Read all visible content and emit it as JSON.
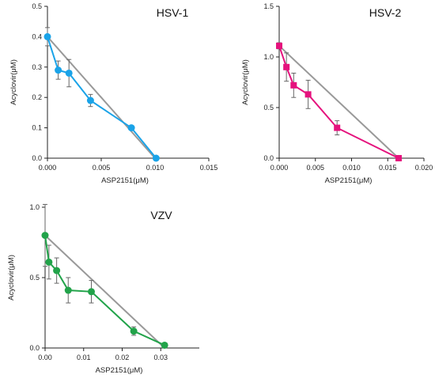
{
  "chart_data": [
    {
      "type": "line",
      "title": "HSV-1",
      "xlabel": "ASP2151(μM)",
      "ylabel": "Acyclovir(μM)",
      "xlim": [
        0,
        0.015
      ],
      "ylim": [
        0,
        0.5
      ],
      "xticks": [
        "0.000",
        "0.005",
        "0.010",
        "0.015"
      ],
      "yticks": [
        "0.0",
        "0.1",
        "0.2",
        "0.3",
        "0.4",
        "0.5"
      ],
      "marker": "circle",
      "color": "#1aa3e8",
      "additivity_line_color": "#999999",
      "additivity_line": {
        "x": [
          0,
          0.01
        ],
        "y": [
          0.4,
          0
        ]
      },
      "series": [
        {
          "x": [
            0,
            0.001,
            0.002,
            0.004,
            0.0078,
            0.0101
          ],
          "y": [
            0.4,
            0.29,
            0.28,
            0.19,
            0.1,
            0.0
          ],
          "error": [
            0.03,
            0.03,
            0.045,
            0.02,
            0.005,
            0.003
          ]
        }
      ]
    },
    {
      "type": "line",
      "title": "HSV-2",
      "xlabel": "ASP2151(μM)",
      "ylabel": "Acyclovir(μM)",
      "xlim": [
        0,
        0.02
      ],
      "ylim": [
        0,
        1.5
      ],
      "xticks": [
        "0.000",
        "0.005",
        "0.010",
        "0.015",
        "0.020"
      ],
      "yticks": [
        "0.0",
        "0.5",
        "1.0",
        "1.5"
      ],
      "marker": "square",
      "color": "#e5127d",
      "additivity_line_color": "#999999",
      "additivity_line": {
        "x": [
          0,
          0.0165
        ],
        "y": [
          1.11,
          0
        ]
      },
      "series": [
        {
          "x": [
            0,
            0.001,
            0.002,
            0.004,
            0.008,
            0.0165
          ],
          "y": [
            1.11,
            0.9,
            0.72,
            0.63,
            0.3,
            0.0
          ],
          "error": [
            0.03,
            0.14,
            0.12,
            0.14,
            0.07,
            0.01
          ]
        }
      ]
    },
    {
      "type": "line",
      "title": "VZV",
      "xlabel": "ASP2151(μM)",
      "ylabel": "Acyclovir(μM)",
      "xlim": [
        0,
        0.04
      ],
      "ylim": [
        0,
        1.0
      ],
      "xticks": [
        "0.00",
        "0.01",
        "0.02",
        "0.03"
      ],
      "yticks": [
        "0.0",
        "0.5",
        "1.0"
      ],
      "marker": "circle",
      "color": "#22a34a",
      "additivity_line_color": "#999999",
      "additivity_line": {
        "x": [
          0,
          0.031
        ],
        "y": [
          0.8,
          0
        ]
      },
      "series": [
        {
          "x": [
            0,
            0.001,
            0.003,
            0.006,
            0.012,
            0.023,
            0.031
          ],
          "y": [
            0.8,
            0.61,
            0.55,
            0.41,
            0.4,
            0.12,
            0.02
          ],
          "error": [
            0.22,
            0.12,
            0.09,
            0.09,
            0.08,
            0.03,
            0.01
          ]
        }
      ]
    }
  ]
}
